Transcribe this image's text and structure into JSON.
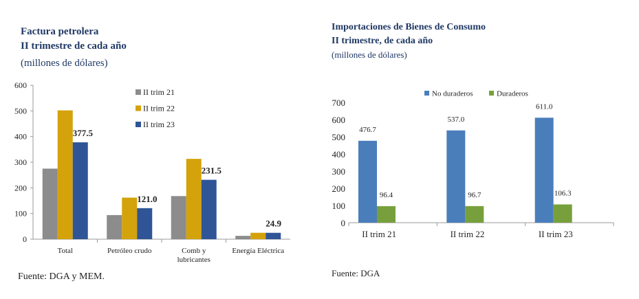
{
  "left_panel": {
    "title_line1": "Factura petrolera",
    "title_line2": "II trimestre de cada año",
    "unit": "(millones de dólares)",
    "source": "Fuente: DGA y MEM."
  },
  "right_panel": {
    "title_line1": "Importaciones de Bienes de Consumo",
    "title_line2": "II trimestre, de cada año",
    "unit": "(millones de dólares)",
    "source": "Fuente: DGA"
  },
  "chart_data": [
    {
      "type": "bar",
      "title": "Factura petrolera",
      "subtitle": "II trimestre de cada año",
      "ylabel": "(millones de dólares)",
      "ylim": [
        0,
        600
      ],
      "yticks": [
        0,
        100,
        200,
        300,
        400,
        500,
        600
      ],
      "categories": [
        "Total",
        "Petróleo crudo",
        "Comb y lubricantes",
        "Energía Eléctrica"
      ],
      "category_lines": [
        [
          "Total"
        ],
        [
          "Petróleo crudo"
        ],
        [
          "Comb y",
          "lubricantes"
        ],
        [
          "Energía Eléctrica"
        ]
      ],
      "series": [
        {
          "name": "II trim 21",
          "color": "#8c8c8c",
          "values": [
            275,
            94,
            168,
            13
          ]
        },
        {
          "name": "II trim 22",
          "color": "#d4a20b",
          "values": [
            502,
            162,
            313,
            25
          ]
        },
        {
          "name": "II trim 23",
          "color": "#2f5597",
          "values": [
            377.5,
            121.0,
            231.5,
            24.9
          ]
        }
      ],
      "data_labels": [
        {
          "series": 2,
          "index": 0,
          "text": "377.5"
        },
        {
          "series": 2,
          "index": 1,
          "text": "121.0"
        },
        {
          "series": 2,
          "index": 2,
          "text": "231.5"
        },
        {
          "series": 2,
          "index": 3,
          "text": "24.9"
        }
      ],
      "legend_position": "top-right"
    },
    {
      "type": "bar",
      "title": "Importaciones de Bienes de Consumo",
      "subtitle": "II trimestre, de cada año",
      "ylabel": "(millones de dólares)",
      "ylim": [
        0,
        700
      ],
      "yticks": [
        0,
        100,
        200,
        300,
        400,
        500,
        600,
        700
      ],
      "categories": [
        "II trim 21",
        "II trim 22",
        "II trim 23"
      ],
      "series": [
        {
          "name": "No duraderos",
          "color": "#4a7ebb",
          "values": [
            476.7,
            537.0,
            611.0
          ],
          "labels": [
            "476.7",
            "537.0",
            "611.0"
          ]
        },
        {
          "name": "Duraderos",
          "color": "#77a03c",
          "values": [
            96.4,
            96.7,
            106.3
          ],
          "labels": [
            "96.4",
            "96.7",
            "106.3"
          ]
        }
      ],
      "legend_position": "top"
    }
  ]
}
